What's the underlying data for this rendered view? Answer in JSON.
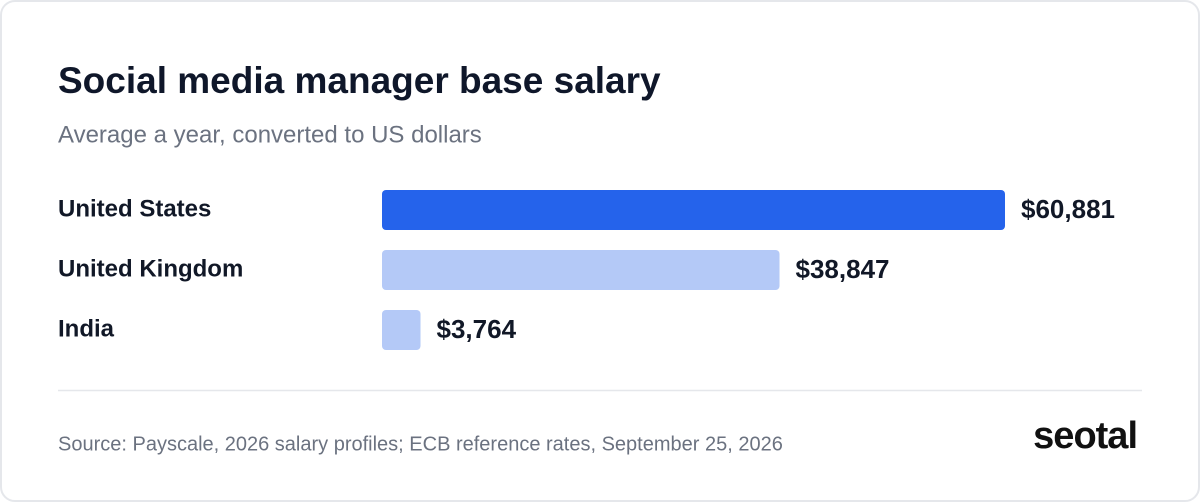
{
  "chart_data": {
    "type": "bar",
    "orientation": "horizontal",
    "title": "Social media manager base salary",
    "subtitle": "Average a year, converted to US dollars",
    "categories": [
      "United States",
      "United Kingdom",
      "India"
    ],
    "values": [
      60881,
      38847,
      3764
    ],
    "value_labels": [
      "$60,881",
      "$38,847",
      "$3,764"
    ],
    "colors": [
      "#2563eb",
      "#b4c9f7",
      "#b4c9f7"
    ],
    "source": "Source: Payscale, 2026 salary profiles; ECB reference rates, September 25, 2026",
    "logo": "seotal"
  }
}
